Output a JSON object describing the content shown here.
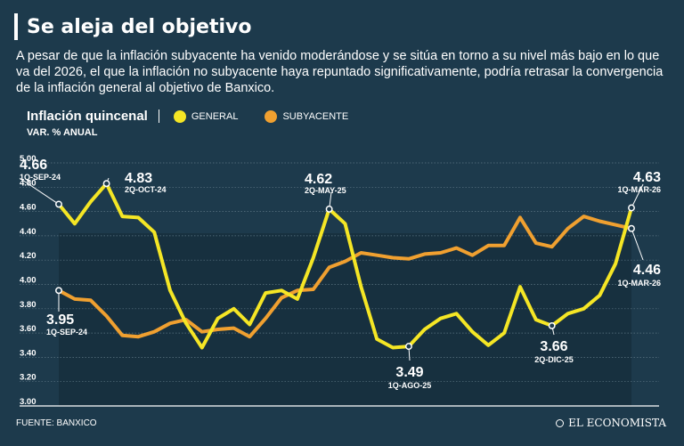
{
  "header": {
    "title": "Se aleja del objetivo",
    "subtitle": "A pesar de que la inflación subyacente ha venido moderándose y se sitúa en torno a su nivel más bajo en lo que va del 2026, el que la inflación no subyacente haya repuntado significativamente, podría retrasar la convergencia de la inflación general al objetivo de Banxico."
  },
  "legend": {
    "title": "Inflación quincenal",
    "units": "VAR. % ANUAL",
    "items": [
      {
        "label": "GENERAL",
        "color": "#f5e625"
      },
      {
        "label": "SUBYACENTE",
        "color": "#f0a030"
      }
    ]
  },
  "footer": {
    "source": "FUENTE: BANXICO",
    "brand": "EL ECONOMISTA"
  },
  "chart_data": {
    "type": "line",
    "ylim": [
      3.0,
      5.0
    ],
    "yticks": [
      "3.00",
      "3.20",
      "3.40",
      "3.60",
      "3.80",
      "4.00",
      "4.20",
      "4.40",
      "4.60",
      "4.80",
      "5.00"
    ],
    "grid": true,
    "series": [
      {
        "name": "GENERAL",
        "color": "#f5e625",
        "values": [
          4.66,
          4.5,
          4.68,
          4.83,
          4.56,
          4.55,
          4.43,
          3.95,
          3.68,
          3.48,
          3.72,
          3.8,
          3.67,
          3.93,
          3.95,
          3.88,
          4.22,
          4.62,
          4.5,
          3.98,
          3.55,
          3.48,
          3.49,
          3.63,
          3.72,
          3.76,
          3.61,
          3.5,
          3.6,
          3.98,
          3.71,
          3.66,
          3.76,
          3.8,
          3.91,
          4.17,
          4.63
        ]
      },
      {
        "name": "SUBYACENTE",
        "color": "#f0a030",
        "values": [
          3.95,
          3.88,
          3.87,
          3.74,
          3.58,
          3.57,
          3.61,
          3.68,
          3.71,
          3.61,
          3.63,
          3.64,
          3.57,
          3.72,
          3.89,
          3.95,
          3.96,
          4.14,
          4.19,
          4.26,
          4.24,
          4.22,
          4.21,
          4.25,
          4.26,
          4.3,
          4.24,
          4.32,
          4.32,
          4.55,
          4.34,
          4.31,
          4.46,
          4.56,
          4.52,
          4.49,
          4.46
        ]
      }
    ],
    "annotations": [
      {
        "series": 0,
        "index": 0,
        "value": "4.66",
        "date": "1Q-SEP-24"
      },
      {
        "series": 0,
        "index": 3,
        "value": "4.83",
        "date": "2Q-OCT-24"
      },
      {
        "series": 0,
        "index": 17,
        "value": "4.62",
        "date": "2Q-MAY-25"
      },
      {
        "series": 0,
        "index": 22,
        "value": "3.49",
        "date": "1Q-AGO-25"
      },
      {
        "series": 0,
        "index": 31,
        "value": "3.66",
        "date": "2Q-DIC-25"
      },
      {
        "series": 0,
        "index": 36,
        "value": "4.63",
        "date": "1Q-MAR-26"
      },
      {
        "series": 1,
        "index": 0,
        "value": "3.95",
        "date": "1Q-SEP-24"
      },
      {
        "series": 1,
        "index": 36,
        "value": "4.46",
        "date": "1Q-MAR-26"
      }
    ]
  }
}
